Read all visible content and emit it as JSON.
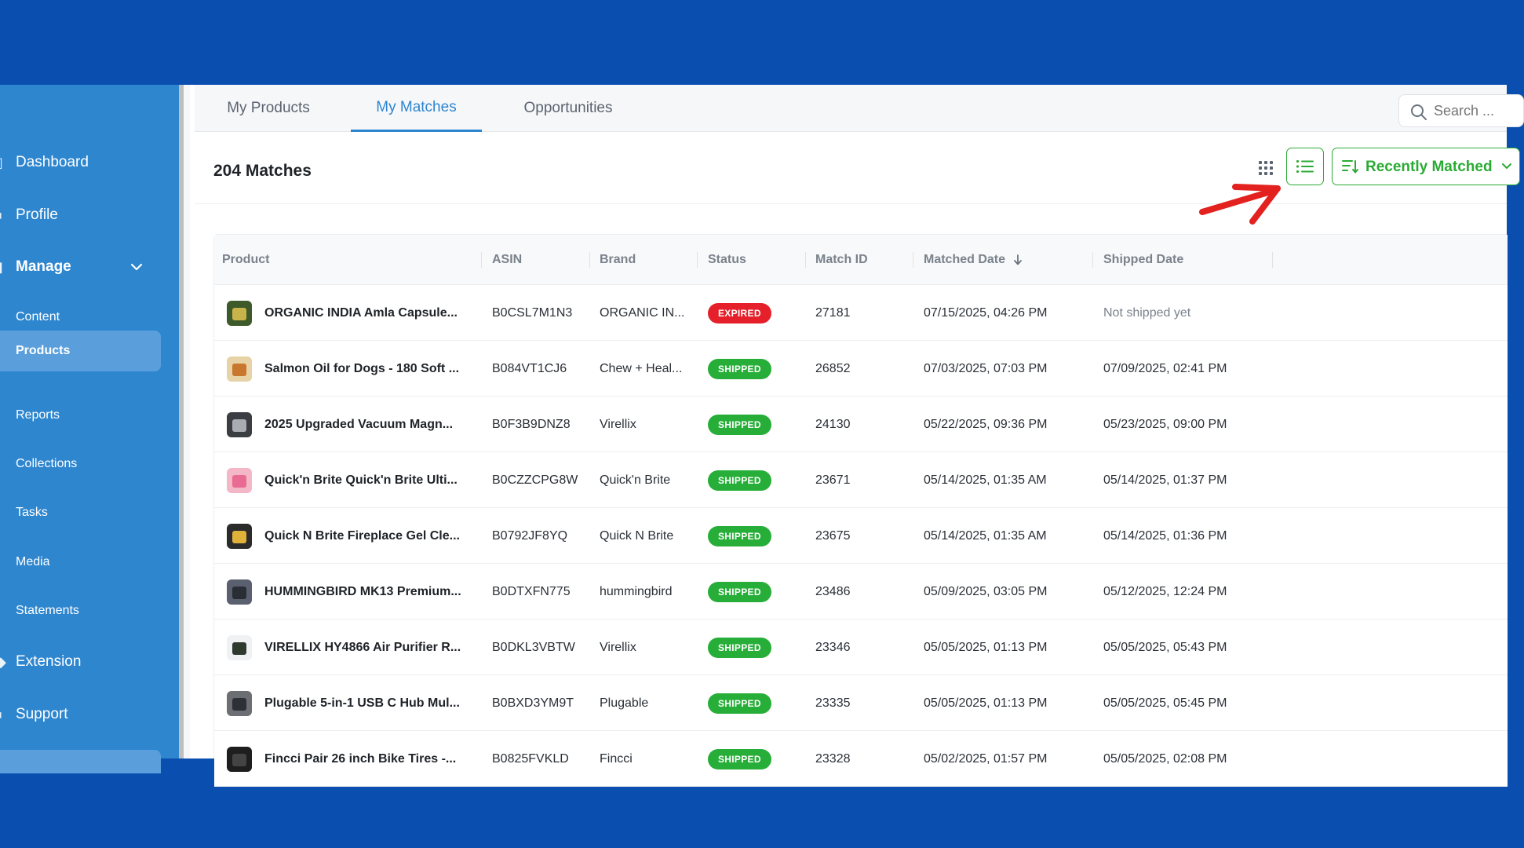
{
  "sidebar": {
    "items": [
      {
        "label": "Dashboard",
        "type": "top"
      },
      {
        "label": "Profile",
        "type": "top"
      },
      {
        "label": "Manage",
        "type": "bold"
      },
      {
        "label": "Content",
        "type": "sub"
      },
      {
        "label": "Products",
        "type": "active"
      },
      {
        "label": "Reports",
        "type": "sub"
      },
      {
        "label": "Collections",
        "type": "sub"
      },
      {
        "label": "Tasks",
        "type": "sub"
      },
      {
        "label": "Media",
        "type": "sub"
      },
      {
        "label": "Statements",
        "type": "sub"
      },
      {
        "label": "Extension",
        "type": "top"
      },
      {
        "label": "Support",
        "type": "top"
      }
    ]
  },
  "tabs": [
    {
      "label": "My Products"
    },
    {
      "label": "My Matches"
    },
    {
      "label": "Opportunities"
    }
  ],
  "search": {
    "placeholder": "Search ..."
  },
  "header": {
    "count_label": "204 Matches"
  },
  "sort": {
    "label": "Recently Matched"
  },
  "colors": {
    "primary_blue": "#2e86cf",
    "accent_green": "#2bab35",
    "expired_red": "#e5202a",
    "shipped_green": "#27ae38",
    "annotation_red": "#e3211e"
  },
  "table": {
    "columns": [
      "Product",
      "ASIN",
      "Brand",
      "Status",
      "Match ID",
      "Matched Date",
      "Shipped Date"
    ],
    "rows": [
      {
        "product": "ORGANIC INDIA Amla Capsule...",
        "asin": "B0CSL7M1N3",
        "brand": "ORGANIC IN...",
        "status": "EXPIRED",
        "match_id": "27181",
        "matched": "07/15/2025, 04:26 PM",
        "shipped": "Not shipped yet"
      },
      {
        "product": "Salmon Oil for Dogs - 180 Soft ...",
        "asin": "B084VT1CJ6",
        "brand": "Chew + Heal...",
        "status": "SHIPPED",
        "match_id": "26852",
        "matched": "07/03/2025, 07:03 PM",
        "shipped": "07/09/2025, 02:41 PM"
      },
      {
        "product": "2025 Upgraded Vacuum Magn...",
        "asin": "B0F3B9DNZ8",
        "brand": "Virellix",
        "status": "SHIPPED",
        "match_id": "24130",
        "matched": "05/22/2025, 09:36 PM",
        "shipped": "05/23/2025, 09:00 PM"
      },
      {
        "product": "Quick'n Brite Quick'n Brite Ulti...",
        "asin": "B0CZZCPG8W",
        "brand": "Quick'n Brite",
        "status": "SHIPPED",
        "match_id": "23671",
        "matched": "05/14/2025, 01:35 AM",
        "shipped": "05/14/2025, 01:37 PM"
      },
      {
        "product": "Quick N Brite Fireplace Gel Cle...",
        "asin": "B0792JF8YQ",
        "brand": "Quick N Brite",
        "status": "SHIPPED",
        "match_id": "23675",
        "matched": "05/14/2025, 01:35 AM",
        "shipped": "05/14/2025, 01:36 PM"
      },
      {
        "product": "HUMMINGBIRD MK13 Premium...",
        "asin": "B0DTXFN775",
        "brand": "hummingbird",
        "status": "SHIPPED",
        "match_id": "23486",
        "matched": "05/09/2025, 03:05 PM",
        "shipped": "05/12/2025, 12:24 PM"
      },
      {
        "product": "VIRELLIX HY4866 Air Purifier R...",
        "asin": "B0DKL3VBTW",
        "brand": "Virellix",
        "status": "SHIPPED",
        "match_id": "23346",
        "matched": "05/05/2025, 01:13 PM",
        "shipped": "05/05/2025, 05:43 PM"
      },
      {
        "product": "Plugable 5-in-1 USB C Hub Mul...",
        "asin": "B0BXD3YM9T",
        "brand": "Plugable",
        "status": "SHIPPED",
        "match_id": "23335",
        "matched": "05/05/2025, 01:13 PM",
        "shipped": "05/05/2025, 05:45 PM"
      },
      {
        "product": "Fincci Pair 26 inch Bike Tires -...",
        "asin": "B0825FVKLD",
        "brand": "Fincci",
        "status": "SHIPPED",
        "match_id": "23328",
        "matched": "05/02/2025, 01:57 PM",
        "shipped": "05/05/2025, 02:08 PM"
      }
    ]
  }
}
